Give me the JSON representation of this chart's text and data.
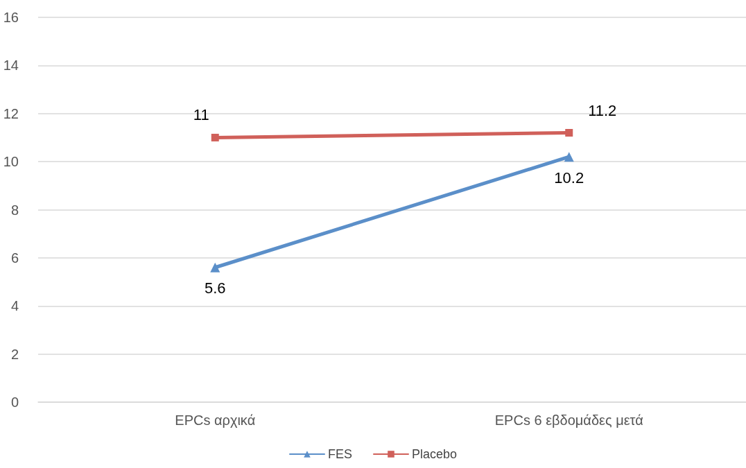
{
  "chart_data": {
    "type": "line",
    "categories": [
      "EPCs αρχικά",
      "EPCs 6 εβδομάδες μετά"
    ],
    "series": [
      {
        "name": "FES",
        "color": "#5b8fc9",
        "values": [
          5.6,
          10.2
        ],
        "marker": "triangle"
      },
      {
        "name": "Placebo",
        "color": "#d0605a",
        "values": [
          11,
          11.2
        ],
        "marker": "square"
      }
    ],
    "ylim": [
      0,
      16
    ],
    "yticks": [
      0,
      2,
      4,
      6,
      8,
      10,
      12,
      14,
      16
    ],
    "grid": "y",
    "legend": "bottom",
    "data_labels": true,
    "line_style": "solid"
  }
}
